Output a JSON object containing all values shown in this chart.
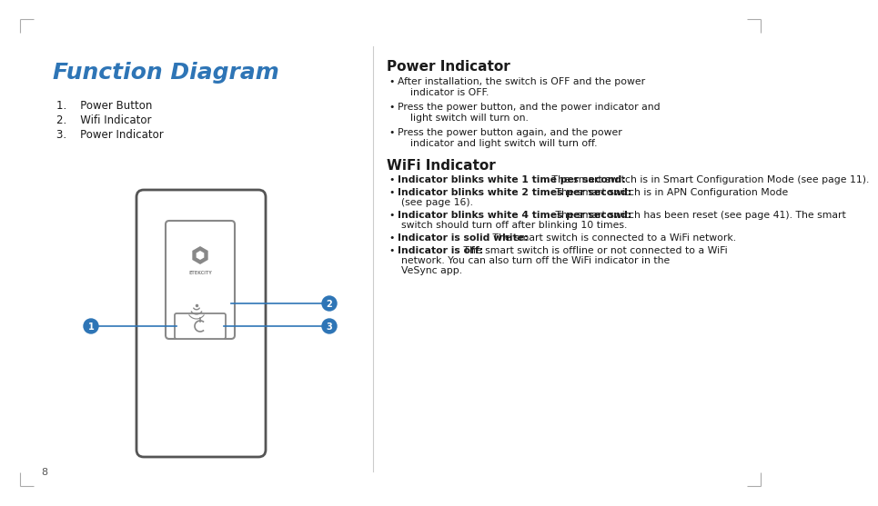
{
  "title": "Function Diagram",
  "title_color": "#2E75B6",
  "title_fontsize": 18,
  "list_items": [
    "1.    Power Button",
    "2.    Wifi Indicator",
    "3.    Power Indicator"
  ],
  "right_title1": "Power Indicator",
  "right_title2": "WiFi Indicator",
  "power_bullets": [
    "After installation, the switch is OFF and the power\n    indicator is OFF.",
    "Press the power button, and the power indicator and\n    light switch will turn on.",
    "Press the power button again, and the power\n    indicator and light switch will turn off."
  ],
  "wifi_bullets_bold": [
    "Indicator blinks white 1 time per second:",
    "Indicator blinks white 2 times per second:",
    "Indicator blinks white 4 times per second:",
    "Indicator is solid white:",
    "Indicator is off:"
  ],
  "wifi_bullets_normal": [
    " The smart switch is in Smart Configuration Mode (see page 11).",
    " The smart switch is in APN Configuration Mode\n    (see page 16).",
    " The smart switch has been reset (see page 41). The smart\n    switch should turn off after blinking 10 times.",
    " The smart switch is connected to a WiFi network.",
    " The smart switch is offline or not connected to a WiFi\n    network. You can also turn off the WiFi indicator in the\n    VeSync app."
  ],
  "bg_color": "#ffffff",
  "text_color": "#1a1a1a",
  "line_color": "#2E75B6",
  "circle_color": "#2E75B6",
  "page_number": "8",
  "device_outline_color": "#555555"
}
